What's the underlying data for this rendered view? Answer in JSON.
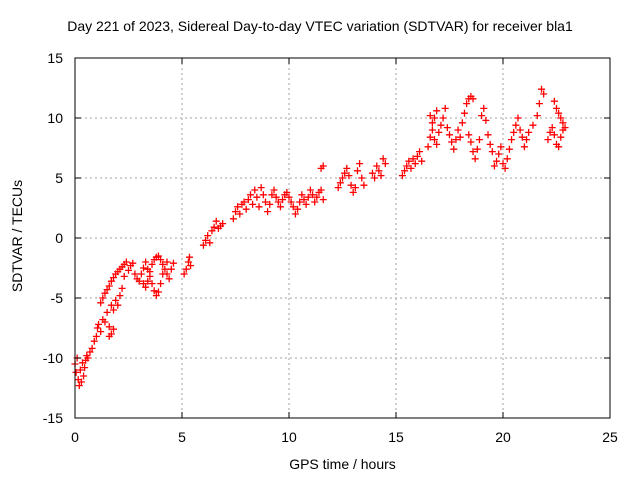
{
  "chart_data": {
    "type": "scatter",
    "title": "Day 221 of 2023, Sidereal Day-to-day VTEC variation (SDTVAR) for receiver bla1",
    "xlabel": "GPS time / hours",
    "ylabel": "SDTVAR / TECUs",
    "xlim": [
      0,
      25
    ],
    "ylim": [
      -15,
      15
    ],
    "xticks": [
      0,
      5,
      10,
      15,
      20,
      25
    ],
    "yticks": [
      -15,
      -10,
      -5,
      0,
      5,
      10,
      15
    ],
    "xtick_labels": [
      "0",
      "5",
      "10",
      "15",
      "20",
      "25"
    ],
    "ytick_labels": [
      "-15",
      "-10",
      "-5",
      "0",
      "5",
      "10",
      "15"
    ],
    "grid": true,
    "marker": "+",
    "color": "#ff0000",
    "series": [
      {
        "name": "SDTVAR",
        "points": [
          [
            0.0,
            -10.5
          ],
          [
            0.05,
            -11.2
          ],
          [
            0.1,
            -10.0
          ],
          [
            0.15,
            -11.8
          ],
          [
            0.2,
            -12.3
          ],
          [
            0.25,
            -11.0
          ],
          [
            0.3,
            -12.0
          ],
          [
            0.35,
            -10.4
          ],
          [
            0.4,
            -11.5
          ],
          [
            0.45,
            -10.8
          ],
          [
            0.5,
            -10.2
          ],
          [
            0.55,
            -9.8
          ],
          [
            0.6,
            -10.0
          ],
          [
            0.7,
            -9.5
          ],
          [
            0.8,
            -9.2
          ],
          [
            0.9,
            -8.6
          ],
          [
            1.0,
            -8.2
          ],
          [
            1.05,
            -7.5
          ],
          [
            1.1,
            -7.2
          ],
          [
            1.2,
            -7.8
          ],
          [
            1.3,
            -6.8
          ],
          [
            1.4,
            -7.0
          ],
          [
            1.5,
            -6.2
          ],
          [
            1.6,
            -7.4
          ],
          [
            1.7,
            -5.6
          ],
          [
            1.8,
            -6.0
          ],
          [
            1.9,
            -5.2
          ],
          [
            2.0,
            -5.6
          ],
          [
            2.1,
            -4.8
          ],
          [
            2.2,
            -4.2
          ],
          [
            1.2,
            -5.4
          ],
          [
            1.3,
            -5.0
          ],
          [
            1.4,
            -4.6
          ],
          [
            1.5,
            -4.3
          ],
          [
            1.6,
            -4.0
          ],
          [
            1.7,
            -3.6
          ],
          [
            1.8,
            -3.3
          ],
          [
            1.9,
            -3.0
          ],
          [
            2.0,
            -2.8
          ],
          [
            2.1,
            -2.6
          ],
          [
            2.2,
            -2.4
          ],
          [
            2.3,
            -2.2
          ],
          [
            2.4,
            -2.0
          ],
          [
            1.6,
            -8.2
          ],
          [
            1.7,
            -8.0
          ],
          [
            1.8,
            -7.6
          ],
          [
            2.3,
            -3.2
          ],
          [
            2.5,
            -2.7
          ],
          [
            2.6,
            -2.3
          ],
          [
            2.7,
            -2.1
          ],
          [
            2.8,
            -3.0
          ],
          [
            2.9,
            -3.4
          ],
          [
            3.0,
            -3.6
          ],
          [
            3.1,
            -3.0
          ],
          [
            3.2,
            -2.5
          ],
          [
            3.3,
            -2.0
          ],
          [
            3.4,
            -2.6
          ],
          [
            3.5,
            -3.2
          ],
          [
            3.6,
            -3.8
          ],
          [
            3.7,
            -4.4
          ],
          [
            3.8,
            -4.8
          ],
          [
            3.9,
            -4.5
          ],
          [
            4.0,
            -3.8
          ],
          [
            3.2,
            -3.8
          ],
          [
            3.3,
            -4.1
          ],
          [
            3.4,
            -3.6
          ],
          [
            3.5,
            -2.8
          ],
          [
            3.6,
            -2.2
          ],
          [
            3.7,
            -1.8
          ],
          [
            3.8,
            -1.6
          ],
          [
            3.9,
            -1.5
          ],
          [
            4.0,
            -1.8
          ],
          [
            4.1,
            -2.2
          ],
          [
            4.2,
            -2.6
          ],
          [
            4.3,
            -3.0
          ],
          [
            4.4,
            -3.4
          ],
          [
            4.5,
            -2.6
          ],
          [
            4.6,
            -2.1
          ],
          [
            4.3,
            -2.0
          ],
          [
            4.1,
            -3.0
          ],
          [
            5.1,
            -3.0
          ],
          [
            5.2,
            -2.6
          ],
          [
            5.3,
            -2.0
          ],
          [
            5.35,
            -1.6
          ],
          [
            5.4,
            -2.3
          ],
          [
            6.0,
            -0.6
          ],
          [
            6.1,
            -0.2
          ],
          [
            6.2,
            0.2
          ],
          [
            6.3,
            -0.4
          ],
          [
            6.4,
            0.6
          ],
          [
            6.5,
            0.9
          ],
          [
            6.6,
            1.4
          ],
          [
            6.7,
            0.8
          ],
          [
            6.8,
            1.0
          ],
          [
            6.9,
            1.2
          ],
          [
            7.4,
            1.6
          ],
          [
            7.5,
            2.2
          ],
          [
            7.6,
            2.6
          ],
          [
            7.7,
            2.0
          ],
          [
            7.8,
            2.8
          ],
          [
            7.9,
            3.0
          ],
          [
            8.0,
            2.4
          ],
          [
            8.1,
            3.2
          ],
          [
            8.2,
            3.6
          ],
          [
            8.3,
            2.8
          ],
          [
            8.4,
            4.0
          ],
          [
            8.5,
            3.4
          ],
          [
            8.6,
            2.6
          ],
          [
            8.7,
            4.2
          ],
          [
            8.8,
            3.6
          ],
          [
            8.9,
            3.0
          ],
          [
            9.0,
            2.2
          ],
          [
            9.1,
            2.8
          ],
          [
            9.2,
            3.6
          ],
          [
            9.3,
            4.0
          ],
          [
            9.4,
            3.4
          ],
          [
            9.5,
            3.0
          ],
          [
            9.6,
            2.6
          ],
          [
            9.7,
            3.2
          ],
          [
            9.8,
            3.6
          ],
          [
            9.9,
            3.8
          ],
          [
            10.0,
            3.4
          ],
          [
            10.1,
            3.0
          ],
          [
            10.2,
            2.6
          ],
          [
            10.3,
            2.0
          ],
          [
            10.4,
            2.4
          ],
          [
            10.5,
            3.0
          ],
          [
            10.6,
            3.6
          ],
          [
            10.7,
            3.2
          ],
          [
            10.8,
            2.8
          ],
          [
            10.9,
            3.4
          ],
          [
            11.0,
            4.0
          ],
          [
            11.1,
            3.6
          ],
          [
            11.2,
            3.0
          ],
          [
            11.3,
            3.4
          ],
          [
            11.4,
            3.8
          ],
          [
            11.5,
            4.0
          ],
          [
            11.6,
            3.2
          ],
          [
            11.5,
            5.8
          ],
          [
            11.6,
            6.0
          ],
          [
            12.3,
            4.2
          ],
          [
            12.4,
            4.6
          ],
          [
            12.5,
            5.0
          ],
          [
            12.6,
            5.4
          ],
          [
            12.7,
            5.8
          ],
          [
            12.8,
            5.2
          ],
          [
            12.9,
            4.4
          ],
          [
            13.0,
            3.8
          ],
          [
            13.1,
            4.2
          ],
          [
            13.2,
            5.6
          ],
          [
            13.3,
            6.2
          ],
          [
            13.4,
            5.0
          ],
          [
            13.5,
            4.4
          ],
          [
            13.9,
            5.4
          ],
          [
            14.0,
            5.0
          ],
          [
            14.1,
            6.0
          ],
          [
            14.2,
            5.6
          ],
          [
            14.3,
            5.2
          ],
          [
            14.4,
            6.6
          ],
          [
            14.5,
            6.2
          ],
          [
            15.3,
            5.2
          ],
          [
            15.4,
            5.6
          ],
          [
            15.5,
            6.0
          ],
          [
            15.6,
            6.4
          ],
          [
            15.7,
            5.8
          ],
          [
            15.8,
            6.6
          ],
          [
            15.9,
            6.2
          ],
          [
            16.0,
            6.8
          ],
          [
            16.1,
            7.2
          ],
          [
            16.2,
            6.4
          ],
          [
            16.5,
            7.6
          ],
          [
            16.6,
            8.4
          ],
          [
            16.7,
            9.0
          ],
          [
            16.8,
            10.0
          ],
          [
            16.9,
            10.6
          ],
          [
            16.6,
            10.2
          ],
          [
            16.7,
            9.6
          ],
          [
            16.8,
            8.2
          ],
          [
            16.9,
            7.8
          ],
          [
            17.0,
            8.8
          ],
          [
            17.1,
            9.4
          ],
          [
            17.2,
            10.0
          ],
          [
            17.3,
            10.8
          ],
          [
            17.4,
            9.2
          ],
          [
            17.5,
            8.6
          ],
          [
            17.6,
            8.0
          ],
          [
            17.7,
            7.4
          ],
          [
            17.8,
            8.2
          ],
          [
            17.9,
            9.0
          ],
          [
            18.0,
            8.4
          ],
          [
            18.1,
            9.6
          ],
          [
            18.2,
            10.4
          ],
          [
            18.3,
            11.2
          ],
          [
            18.4,
            11.6
          ],
          [
            18.5,
            11.8
          ],
          [
            18.6,
            11.6
          ],
          [
            18.4,
            8.6
          ],
          [
            18.5,
            8.0
          ],
          [
            18.6,
            7.2
          ],
          [
            18.7,
            6.6
          ],
          [
            18.8,
            7.4
          ],
          [
            18.9,
            8.2
          ],
          [
            19.0,
            10.2
          ],
          [
            19.1,
            10.8
          ],
          [
            19.2,
            9.8
          ],
          [
            19.3,
            8.6
          ],
          [
            19.4,
            7.8
          ],
          [
            19.5,
            7.2
          ],
          [
            19.6,
            6.0
          ],
          [
            19.7,
            6.4
          ],
          [
            19.8,
            7.0
          ],
          [
            19.9,
            7.6
          ],
          [
            20.0,
            6.2
          ],
          [
            20.1,
            5.8
          ],
          [
            20.2,
            6.6
          ],
          [
            20.3,
            7.4
          ],
          [
            20.4,
            8.2
          ],
          [
            20.5,
            8.8
          ],
          [
            20.6,
            9.4
          ],
          [
            20.7,
            10.0
          ],
          [
            20.8,
            9.0
          ],
          [
            20.9,
            8.4
          ],
          [
            21.0,
            7.6
          ],
          [
            21.1,
            8.2
          ],
          [
            21.2,
            8.8
          ],
          [
            21.4,
            9.4
          ],
          [
            21.6,
            10.2
          ],
          [
            21.8,
            12.4
          ],
          [
            21.9,
            12.0
          ],
          [
            21.7,
            11.2
          ],
          [
            22.1,
            8.2
          ],
          [
            22.2,
            8.8
          ],
          [
            22.3,
            9.2
          ],
          [
            22.4,
            8.6
          ],
          [
            22.5,
            7.8
          ],
          [
            22.6,
            7.6
          ],
          [
            22.7,
            8.4
          ],
          [
            22.8,
            9.0
          ],
          [
            22.4,
            11.4
          ],
          [
            22.5,
            10.8
          ],
          [
            22.6,
            10.4
          ],
          [
            22.7,
            10.0
          ],
          [
            22.8,
            9.6
          ],
          [
            22.9,
            9.2
          ]
        ]
      }
    ]
  }
}
